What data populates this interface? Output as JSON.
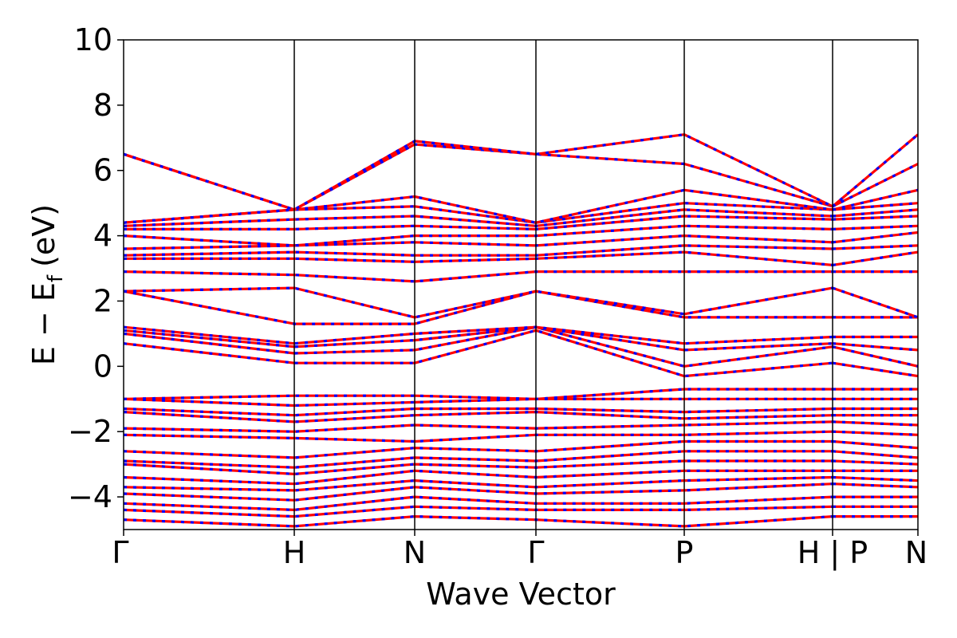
{
  "chart_data": {
    "type": "line",
    "title": "",
    "xlabel": "Wave Vector",
    "ylabel_main": "E − E",
    "ylabel_sub": "f",
    "ylabel_unit": "(eV)",
    "ylim": [
      -5,
      10
    ],
    "yticks": [
      -4,
      -2,
      0,
      2,
      4,
      6,
      8,
      10
    ],
    "ytick_labels": [
      "−4",
      "−2",
      "0",
      "2",
      "4",
      "6",
      "8",
      "10"
    ],
    "x_segments": [
      {
        "from": "Γ",
        "to": "H"
      },
      {
        "from": "H",
        "to": "N"
      },
      {
        "from": "N",
        "to": "Γ"
      },
      {
        "from": "Γ",
        "to": "P"
      },
      {
        "from": "P",
        "to": "H"
      },
      {
        "from": "P",
        "to": "N"
      }
    ],
    "x_tick_labels": [
      "Γ",
      "H",
      "N",
      "Γ",
      "P",
      "H | P",
      "N"
    ],
    "grid": false,
    "legend": "none",
    "series_styles": [
      {
        "name": "",
        "color": "#ff0000",
        "style": "solid"
      },
      {
        "name": "",
        "color": "#0000ff",
        "style": "dashed"
      }
    ],
    "bands_sampled_at_vertices": [
      [
        -4.7,
        -4.9,
        -4.6,
        -4.7,
        -4.9,
        -4.6,
        -4.6
      ],
      [
        -4.4,
        -4.6,
        -4.3,
        -4.4,
        -4.4,
        -4.3,
        -4.3
      ],
      [
        -4.2,
        -4.4,
        -4.0,
        -4.2,
        -4.2,
        -4.0,
        -4.0
      ],
      [
        -3.9,
        -4.1,
        -3.7,
        -3.9,
        -3.8,
        -3.6,
        -3.7
      ],
      [
        -3.7,
        -3.8,
        -3.5,
        -3.7,
        -3.5,
        -3.4,
        -3.5
      ],
      [
        -3.4,
        -3.6,
        -3.2,
        -3.4,
        -3.2,
        -3.2,
        -3.2
      ],
      [
        -3.0,
        -3.3,
        -3.0,
        -3.1,
        -2.9,
        -2.9,
        -3.0
      ],
      [
        -2.9,
        -3.1,
        -2.8,
        -2.9,
        -2.6,
        -2.6,
        -2.8
      ],
      [
        -2.6,
        -2.8,
        -2.5,
        -2.6,
        -2.3,
        -2.3,
        -2.5
      ],
      [
        -2.1,
        -2.2,
        -2.3,
        -2.1,
        -2.1,
        -2.0,
        -2.1
      ],
      [
        -1.9,
        -2.0,
        -1.8,
        -1.9,
        -1.8,
        -1.7,
        -1.8
      ],
      [
        -1.4,
        -1.7,
        -1.5,
        -1.4,
        -1.6,
        -1.5,
        -1.5
      ],
      [
        -1.3,
        -1.5,
        -1.3,
        -1.3,
        -1.4,
        -1.3,
        -1.3
      ],
      [
        -1.0,
        -1.2,
        -1.1,
        -1.0,
        -1.0,
        -1.0,
        -1.0
      ],
      [
        -1.0,
        -0.9,
        -0.9,
        -1.0,
        -0.7,
        -0.7,
        -0.7
      ],
      [
        0.7,
        0.1,
        0.1,
        1.1,
        -0.3,
        0.1,
        -0.3
      ],
      [
        1.0,
        0.4,
        0.5,
        1.2,
        0.0,
        0.6,
        0.0
      ],
      [
        1.1,
        0.6,
        0.8,
        1.2,
        0.5,
        0.7,
        0.5
      ],
      [
        1.2,
        0.7,
        1.0,
        1.2,
        0.7,
        0.9,
        0.9
      ],
      [
        2.3,
        1.3,
        1.3,
        2.3,
        1.5,
        1.5,
        1.5
      ],
      [
        2.3,
        2.4,
        1.5,
        2.3,
        1.6,
        2.4,
        1.5
      ],
      [
        2.9,
        2.8,
        2.6,
        2.9,
        2.9,
        2.9,
        2.9
      ],
      [
        3.3,
        3.3,
        3.2,
        3.3,
        3.5,
        3.1,
        3.5
      ],
      [
        3.4,
        3.5,
        3.4,
        3.4,
        3.7,
        3.6,
        3.7
      ],
      [
        3.6,
        3.7,
        3.8,
        3.7,
        4.0,
        3.8,
        4.1
      ],
      [
        4.0,
        3.7,
        4.0,
        4.0,
        4.3,
        4.2,
        4.3
      ],
      [
        4.2,
        4.2,
        4.3,
        4.2,
        4.6,
        4.5,
        4.6
      ],
      [
        4.3,
        4.5,
        4.6,
        4.3,
        4.8,
        4.6,
        4.8
      ],
      [
        4.4,
        4.8,
        4.9,
        4.4,
        5.0,
        4.8,
        5.0
      ],
      [
        4.4,
        4.8,
        5.2,
        4.4,
        5.4,
        4.8,
        5.4
      ],
      [
        6.5,
        4.8,
        6.8,
        6.5,
        6.2,
        4.9,
        6.2
      ],
      [
        6.5,
        4.8,
        6.9,
        6.5,
        7.1,
        4.9,
        7.1
      ]
    ]
  }
}
